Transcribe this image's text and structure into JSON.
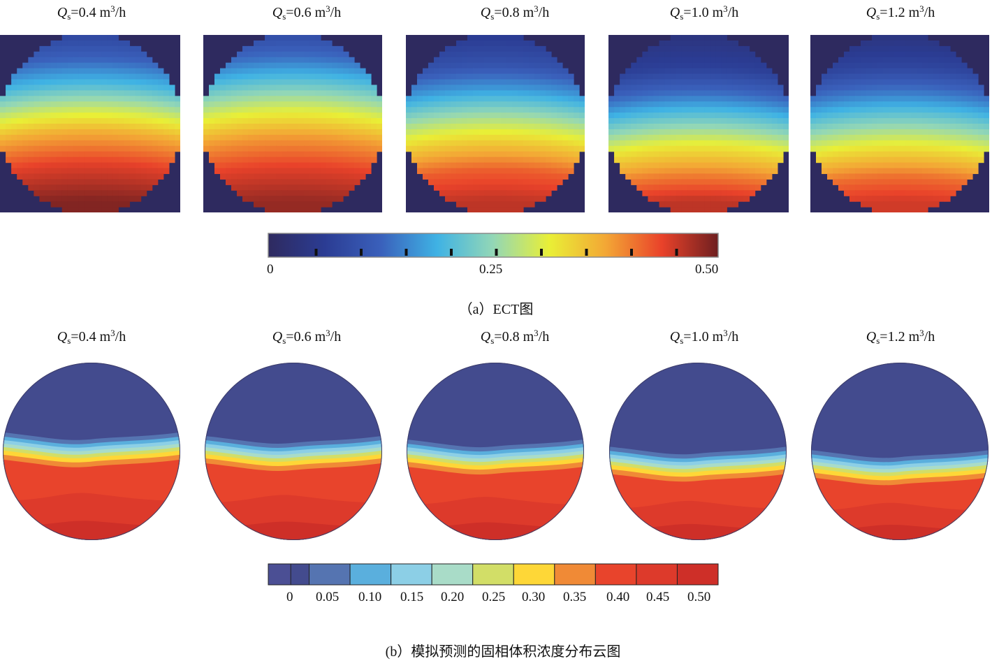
{
  "flow_rates": [
    "0.4",
    "0.6",
    "0.8",
    "1.0",
    "1.2"
  ],
  "title_symbol": "Q",
  "title_subscript": "s",
  "title_unit_prefix": " m",
  "title_unit_power": "3",
  "title_unit_suffix": "/h",
  "captions": {
    "a": "（a）ECT图",
    "b": "(b）模拟预测的固相体积浓度分布云图"
  },
  "chart_data": [
    {
      "type": "heatmap",
      "title": "（a）ECT图",
      "panels": [
        "Qs=0.4 m3/h",
        "Qs=0.6 m3/h",
        "Qs=0.8 m3/h",
        "Qs=1.0 m3/h",
        "Qs=1.2 m3/h"
      ],
      "variable": "solid volume concentration",
      "colorbar": {
        "range": [
          0,
          0.5
        ],
        "tick_labels": [
          "0",
          "0.25",
          "0.50"
        ],
        "tick_values": [
          0,
          0.25,
          0.5
        ],
        "colormap": [
          "#2e2a5f",
          "#2b3c93",
          "#3a60bb",
          "#3fb2e4",
          "#93d7b6",
          "#e9ef36",
          "#f3a735",
          "#e9422a",
          "#6e1f20"
        ]
      },
      "profiles_note": "concentration vs height (0 = top, 1 = bottom) per panel",
      "profiles": [
        [
          [
            0,
            0.07
          ],
          [
            0.18,
            0.13
          ],
          [
            0.32,
            0.2
          ],
          [
            0.48,
            0.3
          ],
          [
            0.6,
            0.37
          ],
          [
            0.78,
            0.44
          ],
          [
            1,
            0.49
          ]
        ],
        [
          [
            0,
            0.08
          ],
          [
            0.17,
            0.14
          ],
          [
            0.32,
            0.22
          ],
          [
            0.48,
            0.31
          ],
          [
            0.62,
            0.38
          ],
          [
            0.8,
            0.44
          ],
          [
            1,
            0.48
          ]
        ],
        [
          [
            0,
            0.05
          ],
          [
            0.2,
            0.1
          ],
          [
            0.35,
            0.17
          ],
          [
            0.52,
            0.27
          ],
          [
            0.65,
            0.34
          ],
          [
            0.82,
            0.42
          ],
          [
            1,
            0.46
          ]
        ],
        [
          [
            0,
            0.03
          ],
          [
            0.22,
            0.07
          ],
          [
            0.38,
            0.14
          ],
          [
            0.55,
            0.24
          ],
          [
            0.68,
            0.32
          ],
          [
            0.85,
            0.4
          ],
          [
            1,
            0.46
          ]
        ],
        [
          [
            0,
            0.03
          ],
          [
            0.22,
            0.08
          ],
          [
            0.38,
            0.15
          ],
          [
            0.56,
            0.25
          ],
          [
            0.7,
            0.33
          ],
          [
            0.86,
            0.41
          ],
          [
            1,
            0.45
          ]
        ]
      ]
    },
    {
      "type": "heatmap",
      "title": "(b）模拟预测的固相体积浓度分布云图",
      "panels": [
        "Qs=0.4 m3/h",
        "Qs=0.6 m3/h",
        "Qs=0.8 m3/h",
        "Qs=1.0 m3/h",
        "Qs=1.2 m3/h"
      ],
      "variable": "simulated solid volume concentration",
      "colorbar": {
        "range": [
          0,
          0.5
        ],
        "tick_labels": [
          "0",
          "0.05",
          "0.10",
          "0.15",
          "0.20",
          "0.25",
          "0.30",
          "0.35",
          "0.40",
          "0.45",
          "0.50"
        ],
        "tick_values": [
          0,
          0.05,
          0.1,
          0.15,
          0.2,
          0.25,
          0.3,
          0.35,
          0.4,
          0.45,
          0.5
        ],
        "levels": [
          "#4b4f94",
          "#434b8e",
          "#5574b1",
          "#5aafdd",
          "#8ccfe6",
          "#a9dcc8",
          "#d2de67",
          "#fed737",
          "#f08a36",
          "#e8442c",
          "#dd3a2b",
          "#ce2f28"
        ]
      },
      "interface_height_note": "fraction of pipe height (from top) where the sharp transition occurs",
      "interface_height": [
        0.44,
        0.46,
        0.48,
        0.52,
        0.54
      ],
      "bottom_concentration": [
        0.45,
        0.45,
        0.45,
        0.45,
        0.45
      ]
    }
  ]
}
